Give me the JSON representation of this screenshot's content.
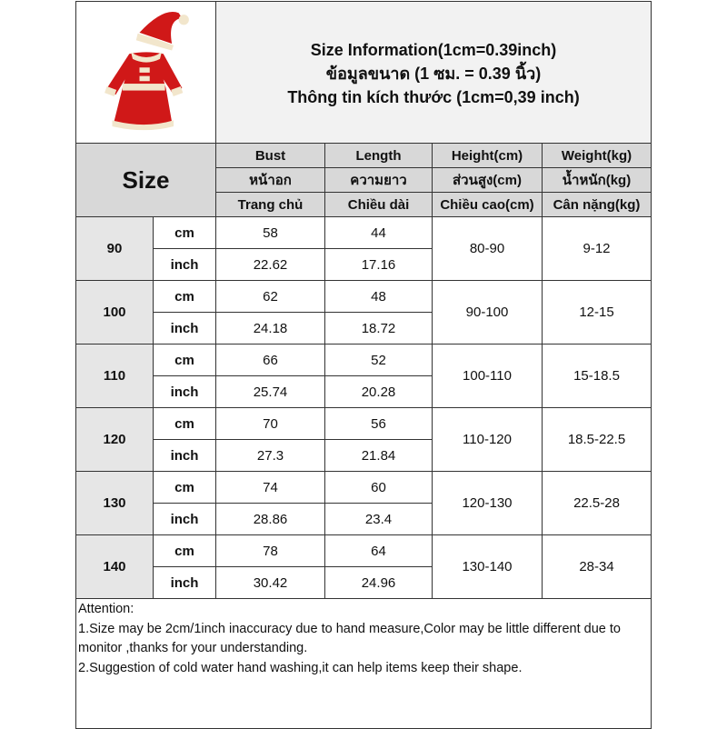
{
  "header": {
    "title_lines": [
      "Size Information(1cm=0.39inch)",
      "ข้อมูลขนาด (1 ซม. = 0.39 นิ้ว)",
      "Thông tin kích thước (1cm=0,39 inch)"
    ],
    "size_label": "Size",
    "image": "santa-dress-with-hat"
  },
  "columns": [
    [
      "Bust",
      "หน้าอก",
      "Trang chủ"
    ],
    [
      "Length",
      "ความยาว",
      "Chiều dài"
    ],
    [
      "Height(cm)",
      "ส่วนสูง(cm)",
      "Chiều cao(cm)"
    ],
    [
      "Weight(kg)",
      "น้ำหนัก(kg)",
      "Cân nặng(kg)"
    ]
  ],
  "units": [
    "cm",
    "inch"
  ],
  "rows": [
    {
      "size": "90",
      "bust_cm": "58",
      "length_cm": "44",
      "bust_in": "22.62",
      "length_in": "17.16",
      "height": "80-90",
      "weight": "9-12"
    },
    {
      "size": "100",
      "bust_cm": "62",
      "length_cm": "48",
      "bust_in": "24.18",
      "length_in": "18.72",
      "height": "90-100",
      "weight": "12-15"
    },
    {
      "size": "110",
      "bust_cm": "66",
      "length_cm": "52",
      "bust_in": "25.74",
      "length_in": "20.28",
      "height": "100-110",
      "weight": "15-18.5"
    },
    {
      "size": "120",
      "bust_cm": "70",
      "length_cm": "56",
      "bust_in": "27.3",
      "length_in": "21.84",
      "height": "110-120",
      "weight": "18.5-22.5"
    },
    {
      "size": "130",
      "bust_cm": "74",
      "length_cm": "60",
      "bust_in": "28.86",
      "length_in": "23.4",
      "height": "120-130",
      "weight": "22.5-28"
    },
    {
      "size": "140",
      "bust_cm": "78",
      "length_cm": "64",
      "bust_in": "30.42",
      "length_in": "24.96",
      "height": "130-140",
      "weight": "28-34"
    }
  ],
  "attention": [
    "Attention:",
    "1.Size may be 2cm/1inch inaccuracy due to hand measure,Color may be little different due to monitor ,thanks for your understanding.",
    "2.Suggestion of cold water hand washing,it can help items keep their shape."
  ]
}
